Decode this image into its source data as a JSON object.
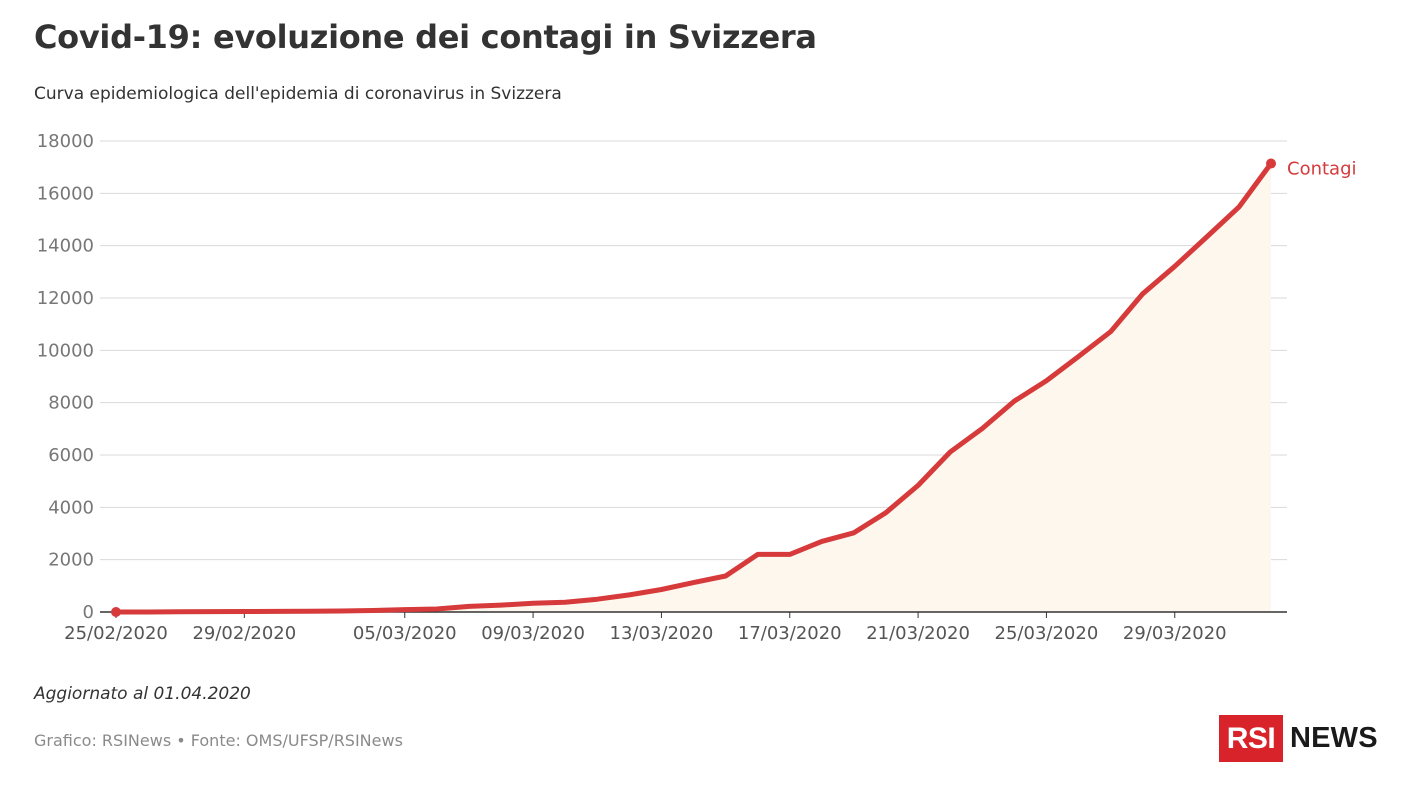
{
  "header": {
    "title": "Covid-19: evoluzione dei contagi in Svizzera",
    "subtitle": "Curva epidemiologica dell'epidemia di coronavirus in Svizzera"
  },
  "footer": {
    "updated": "Aggiornato al 01.04.2020",
    "credits": "Grafico: RSINews • Fonte: OMS/UFSP/RSINews"
  },
  "logo": {
    "box": "RSI",
    "text": "NEWS"
  },
  "colors": {
    "line": "#d63a3a",
    "area": "#fdf7ee",
    "grid": "#d9d9d9",
    "axis": "#333333"
  },
  "chart_data": {
    "type": "area",
    "title": "Covid-19: evoluzione dei contagi in Svizzera",
    "subtitle": "Curva epidemiologica dell'epidemia di coronavirus in Svizzera",
    "xlabel": "",
    "ylabel": "",
    "ylim": [
      0,
      18000
    ],
    "y_ticks": [
      0,
      2000,
      4000,
      6000,
      8000,
      10000,
      12000,
      14000,
      16000,
      18000
    ],
    "x_tick_labels": [
      "25/02/2020",
      "29/02/2020",
      "05/03/2020",
      "09/03/2020",
      "13/03/2020",
      "17/03/2020",
      "21/03/2020",
      "25/03/2020",
      "29/03/2020"
    ],
    "grid": true,
    "series": [
      {
        "name": "Contagi",
        "x": [
          "2020-02-25",
          "2020-02-26",
          "2020-02-27",
          "2020-02-28",
          "2020-02-29",
          "2020-03-01",
          "2020-03-02",
          "2020-03-03",
          "2020-03-04",
          "2020-03-05",
          "2020-03-06",
          "2020-03-07",
          "2020-03-08",
          "2020-03-09",
          "2020-03-10",
          "2020-03-11",
          "2020-03-12",
          "2020-03-13",
          "2020-03-14",
          "2020-03-15",
          "2020-03-16",
          "2020-03-17",
          "2020-03-18",
          "2020-03-19",
          "2020-03-20",
          "2020-03-21",
          "2020-03-22",
          "2020-03-23",
          "2020-03-24",
          "2020-03-25",
          "2020-03-26",
          "2020-03-27",
          "2020-03-28",
          "2020-03-29",
          "2020-03-30",
          "2020-03-31",
          "2020-04-01"
        ],
        "values": [
          1,
          1,
          8,
          15,
          18,
          24,
          30,
          37,
          56,
          90,
          114,
          214,
          264,
          332,
          374,
          491,
          652,
          858,
          1125,
          1375,
          2200,
          2200,
          2700,
          3028,
          3800,
          4840,
          6113,
          7014,
          8060,
          8836,
          9765,
          10714,
          12161,
          13213,
          14336,
          15475,
          17139
        ]
      }
    ]
  }
}
